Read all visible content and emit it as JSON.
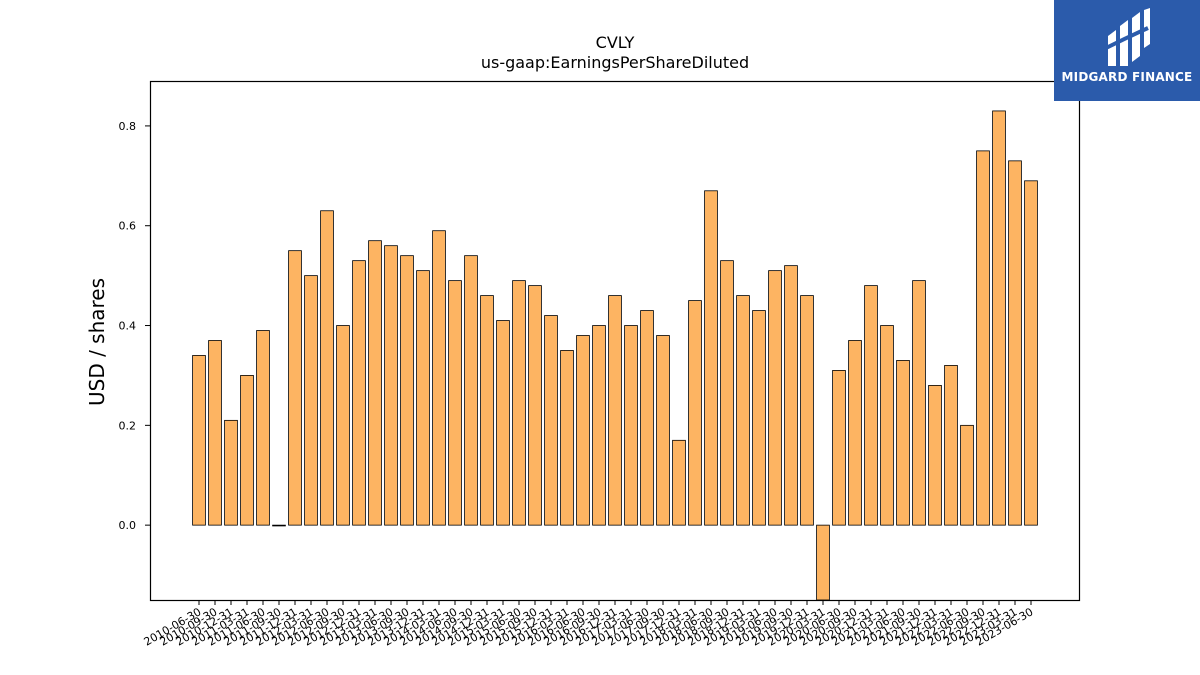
{
  "brand": {
    "name": "MIDGARD FINANCE",
    "color": "#2b5bab"
  },
  "chart_data": {
    "type": "bar",
    "title": "CVLY",
    "subtitle": "us-gaap:EarningsPerShareDiluted",
    "xlabel": "",
    "ylabel": "USD / shares",
    "ylim": [
      -0.15,
      0.89
    ],
    "yticks": [
      "0.0",
      "0.2",
      "0.4",
      "0.6",
      "0.8"
    ],
    "bar_color": "#fdb462",
    "edge_color": "#000000",
    "grid": false,
    "categories": [
      "2010-06-30",
      "2010-09-30",
      "2010-12-31",
      "2011-03-31",
      "2011-06-30",
      "2011-09-30",
      "2011-12-31",
      "2012-03-31",
      "2012-06-30",
      "2012-09-30",
      "2012-12-31",
      "2013-03-31",
      "2013-06-30",
      "2013-09-30",
      "2013-12-31",
      "2014-03-31",
      "2014-06-30",
      "2014-09-30",
      "2014-12-31",
      "2015-03-31",
      "2015-06-30",
      "2015-09-30",
      "2015-12-31",
      "2016-03-31",
      "2016-06-30",
      "2016-09-30",
      "2016-12-31",
      "2017-03-31",
      "2017-06-30",
      "2017-09-30",
      "2017-12-31",
      "2018-03-31",
      "2018-06-30",
      "2018-09-30",
      "2018-12-31",
      "2019-03-31",
      "2019-06-30",
      "2019-09-30",
      "2019-12-31",
      "2020-03-31",
      "2020-06-30",
      "2020-09-30",
      "2020-12-31",
      "2021-03-31",
      "2021-06-30",
      "2021-09-30",
      "2021-12-31",
      "2022-03-31",
      "2022-06-30",
      "2022-09-30",
      "2022-12-31",
      "2023-03-31",
      "2023-06-30"
    ],
    "tick_labels": [
      "2010-06-30",
      "2010-09-30",
      "2010-12-31",
      "2011-03-31",
      "2011-06-30",
      "2011-09-30",
      "2011-12-31",
      "2012-03-31",
      "2012-06-30",
      "2012-09-30",
      "2012-12-31",
      "2013-03-31",
      "2013-06-30",
      "2013-09-30",
      "2013-12-31",
      "2014-03-31",
      "2014-06-30",
      "2014-09-30",
      "2014-12-31",
      "2015-03-31",
      "2015-06-30",
      "2015-09-30",
      "2015-12-31",
      "2016-03-31",
      "2016-06-30",
      "2016-09-30",
      "2016-12-31",
      "2017-03-31",
      "2017-06-30",
      "2017-09-30",
      "2017-12-31",
      "2018-03-31",
      "2018-06-30",
      "2018-09-30",
      "2018-12-31",
      "2019-03-31",
      "2019-06-30",
      "2019-09-30",
      "2019-12-31",
      "2020-03-31",
      "2020-06-30",
      "2020-09-30",
      "2020-12-31",
      "2021-03-31",
      "2021-06-30",
      "2021-09-30",
      "2021-12-31",
      "2022-03-31",
      "2022-06-30",
      "2022-09-30",
      "2022-12-31",
      "2023-03-31",
      "2023-06-30"
    ],
    "values": [
      0.34,
      0.37,
      0.21,
      0.3,
      0.39,
      0.0,
      0.55,
      0.5,
      0.63,
      0.4,
      0.53,
      0.57,
      0.56,
      0.54,
      0.51,
      0.59,
      0.49,
      0.54,
      0.46,
      0.41,
      0.49,
      0.48,
      0.42,
      0.35,
      0.38,
      0.4,
      0.46,
      0.4,
      0.43,
      0.38,
      0.17,
      0.45,
      0.67,
      0.53,
      0.46,
      0.43,
      0.51,
      0.52,
      0.46,
      -0.16,
      0.31,
      0.37,
      0.48,
      0.4,
      0.33,
      0.49,
      0.28,
      0.32,
      0.2,
      0.75,
      0.83,
      0.73,
      0.69
    ]
  }
}
